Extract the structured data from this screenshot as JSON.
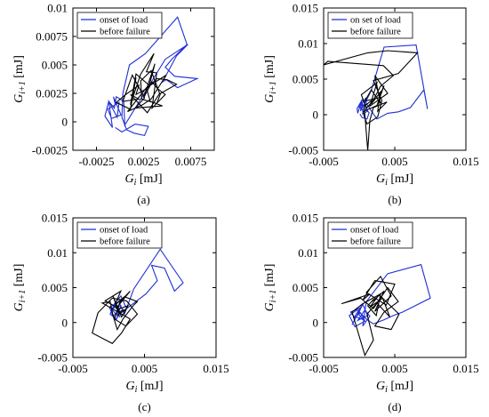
{
  "chart_data": [
    {
      "type": "line",
      "panel_label": "(a)",
      "xlabel": "G_i [mJ]",
      "xlabel_main": "G",
      "xlabel_sub": "i",
      "xlabel_unit": " [mJ]",
      "ylabel": "G_i+1 [mJ]",
      "ylabel_main": "G",
      "ylabel_sub": "i+1",
      "ylabel_unit": " [mJ]",
      "xlim": [
        -0.005,
        0.01
      ],
      "ylim": [
        -0.0025,
        0.01
      ],
      "xticks": [
        -0.0025,
        0.0025,
        0.0075
      ],
      "xtick_labels": [
        "-0.0025",
        "0.0025",
        "0.0075"
      ],
      "yticks": [
        -0.0025,
        0,
        0.0025,
        0.005,
        0.0075,
        0.01
      ],
      "ytick_labels": [
        "-0.0025",
        "0",
        "0.0025",
        "0.005",
        "0.0075",
        "0.01"
      ],
      "legend_position": "top-left",
      "colors": {
        "onset": "#1f2fd6",
        "before": "#000000"
      },
      "series": [
        {
          "name": "onset of load",
          "color": "#1f2fd6",
          "x": [
            -0.0005,
            0.0002,
            0.0016,
            0.003,
            0.0026,
            0.0015,
            0.0007,
            0.0002,
            0.0003,
            0.001,
            0.0027,
            0.0061,
            0.0071,
            0.0055,
            0.0048,
            0.0058,
            0.0082,
            0.0061,
            0.0049,
            0.0045,
            0.006,
            0.0072,
            0.0048,
            0.0005,
            0.0004,
            -0.0004,
            -0.0006,
            -0.0012,
            -0.0008,
            -0.0016,
            -0.0012,
            -0.0003,
            -0.0001,
            -0.0013,
            -0.0009,
            0.0001,
            -0.0007,
            -0.0005
          ],
          "y": [
            -0.0005,
            -0.0009,
            -0.0002,
            -0.0004,
            -0.0012,
            -0.001,
            -0.0007,
            0.0004,
            0.0025,
            0.005,
            0.006,
            0.0092,
            0.0068,
            0.0055,
            0.0048,
            0.004,
            0.0038,
            0.003,
            0.0037,
            0.0035,
            0.0058,
            0.0068,
            0.0055,
            -0.0003,
            0.0018,
            0.0022,
            0.0012,
            0.0018,
            -0.0005,
            0.0005,
            0.0018,
            0.0004,
            0.0017,
            0.0011,
            0.0003,
            0.0006,
            0.0022,
            0.0015
          ]
        },
        {
          "name": "before failure",
          "color": "#000000",
          "x": [
            0.0011,
            0.0017,
            0.0031,
            0.0037,
            0.0025,
            0.0034,
            0.004,
            0.0048,
            0.0034,
            0.0039,
            0.0028,
            0.0036,
            0.0022,
            0.0013,
            0.0017,
            0.0011,
            -0.0004,
            0.0006,
            0.002,
            0.0017,
            0.0028,
            0.0039,
            0.005,
            0.006,
            0.0043,
            0.0039,
            0.0023,
            0.0022,
            0.0033,
            0.0042,
            0.0029,
            0.0011,
            0.002,
            0.0003,
            0.0013,
            0.0026,
            0.0016,
            0.0045,
            0.0032,
            0.0028,
            0.0049,
            0.0033,
            0.0024,
            0.0008,
            0.0028
          ],
          "y": [
            0.0015,
            0.0042,
            0.0032,
            0.0051,
            0.0021,
            0.0035,
            0.0029,
            0.0024,
            0.0012,
            0.0043,
            0.0044,
            0.006,
            0.0042,
            0.002,
            0.0039,
            0.0011,
            0.0017,
            0.0024,
            0.0032,
            0.0024,
            0.0029,
            0.0038,
            0.0037,
            0.0033,
            0.0025,
            0.0016,
            0.002,
            0.0036,
            0.0045,
            0.0025,
            0.0008,
            0.0024,
            0.002,
            0.0018,
            0.0041,
            0.0021,
            0.0012,
            0.0014,
            0.0018,
            0.003,
            0.0041,
            0.002,
            0.0015,
            0.0009,
            0.003
          ]
        }
      ]
    },
    {
      "type": "line",
      "panel_label": "(b)",
      "xlabel": "G_i [mJ]",
      "xlabel_main": "G",
      "xlabel_sub": "i",
      "xlabel_unit": " [mJ]",
      "ylabel": "G_i+1 [mJ]",
      "ylabel_main": "G",
      "ylabel_sub": "i+1",
      "ylabel_unit": " [mJ]",
      "xlim": [
        -0.005,
        0.015
      ],
      "ylim": [
        -0.005,
        0.015
      ],
      "xticks": [
        -0.005,
        0.005,
        0.015
      ],
      "xtick_labels": [
        "-0.005",
        "0.005",
        "0.015"
      ],
      "yticks": [
        -0.005,
        0,
        0.005,
        0.01,
        0.015
      ],
      "ytick_labels": [
        "-0.005",
        "0",
        "0.005",
        "0.01",
        "0.015"
      ],
      "legend_position": "top-left",
      "colors": {
        "onset": "#1f2fd6",
        "before": "#000000"
      },
      "series": [
        {
          "name": "on set of load",
          "color": "#1f2fd6",
          "x": [
            0.0001,
            0.0004,
            0.0011,
            0.0014,
            0.0008,
            0.0005,
            0.0002,
            0.0003,
            0.0006,
            0.0017,
            0.0035,
            0.008,
            0.0096,
            0.0091,
            0.0072,
            0.0055,
            0.004,
            0.0025,
            0.002,
            0.001,
            0.0009,
            0.0001,
            -0.0002,
            -0.0003,
            0.0003,
            0.0006,
            -0.0001,
            0.0004,
            0.0009,
            0.0012,
            0.0004
          ],
          "y": [
            0.0001,
            -0.0004,
            -0.0006,
            0.0003,
            0.0008,
            0.0014,
            0.0005,
            0.0019,
            0.0012,
            0.0034,
            0.0095,
            0.0098,
            0.0008,
            0.0035,
            0.001,
            0.0004,
            0.0002,
            -0.0006,
            0.0001,
            0.0016,
            0.0023,
            0.0012,
            0.0002,
            0.0009,
            0.0017,
            0.0005,
            0.0012,
            0.0021,
            0.0014,
            0.0005,
            0.0001
          ]
        },
        {
          "name": "before failure",
          "color": "#000000",
          "x": [
            0.002,
            0.001,
            0.0003,
            0.0025,
            0.0015,
            0.004,
            0.0022,
            0.003,
            0.0017,
            0.0008,
            0.0028,
            0.0035,
            0.0025,
            0.0005,
            0.0011,
            0.0026,
            0.0032,
            0.002,
            0.0055,
            0.0082,
            0.004,
            0.0012,
            -0.005,
            -0.0044,
            0.0034,
            0.0048,
            0.003,
            0.0017,
            0.003,
            0.0026,
            0.0039,
            0.002,
            0.0015,
            0.0012,
            0.0007,
            0.0019
          ],
          "y": [
            0.002,
            0.0009,
            0.0028,
            0.0045,
            0.0012,
            0.003,
            0.0055,
            0.0016,
            0.0035,
            0.0019,
            0.0024,
            0.0041,
            0.0013,
            0.0004,
            -0.0013,
            -0.0003,
            0.002,
            0.0048,
            0.0058,
            0.0087,
            0.009,
            0.0087,
            0.007,
            0.0075,
            0.0069,
            0.0055,
            0.004,
            0.0015,
            0.0032,
            0.0005,
            0.0018,
            0.001,
            -0.0008,
            -0.005,
            0.0012,
            0.0021
          ]
        }
      ]
    },
    {
      "type": "line",
      "panel_label": "(c)",
      "xlabel": "G_i [mJ]",
      "xlabel_main": "G",
      "xlabel_sub": "i",
      "xlabel_unit": " [mJ]",
      "ylabel": "G_i+1 [mJ]",
      "ylabel_main": "G",
      "ylabel_sub": "i+1",
      "ylabel_unit": " [mJ]",
      "xlim": [
        -0.005,
        0.015
      ],
      "ylim": [
        -0.005,
        0.015
      ],
      "xticks": [
        -0.005,
        0.005,
        0.015
      ],
      "xtick_labels": [
        "-0.005",
        "0.005",
        "0.015"
      ],
      "yticks": [
        -0.005,
        0,
        0.005,
        0.01,
        0.015
      ],
      "ytick_labels": [
        "-0.005",
        "0",
        "0.005",
        "0.01",
        "0.015"
      ],
      "legend_position": "top-left",
      "colors": {
        "onset": "#1f2fd6",
        "before": "#000000"
      },
      "series": [
        {
          "name": "onset of load",
          "color": "#1f2fd6",
          "x": [
            0.0012,
            0.0006,
            0.0001,
            0.0008,
            0.0015,
            0.002,
            0.001,
            0.0003,
            0.0014,
            0.0022,
            0.0035,
            0.0072,
            0.0104,
            0.0092,
            0.0078,
            0.006,
            0.0068,
            0.0052,
            0.0038,
            0.0025,
            0.0017,
            0.0008,
            0.0002,
            0.0011,
            0.0017,
            0.0004,
            0.0009,
            0.0016,
            0.0011
          ],
          "y": [
            0.0015,
            0.0009,
            0.0022,
            0.0026,
            0.0012,
            0.002,
            0.0004,
            0.0017,
            0.003,
            0.0012,
            0.0048,
            0.0105,
            0.0057,
            0.0045,
            0.0078,
            0.0082,
            0.006,
            0.0041,
            0.003,
            0.002,
            0.0038,
            0.0027,
            0.0012,
            0.0005,
            0.0024,
            0.002,
            0.0013,
            0.0008,
            0.0015
          ]
        },
        {
          "name": "before failure",
          "color": "#000000",
          "x": [
            0.001,
            0.003,
            0.0016,
            0.0008,
            0.0024,
            0.004,
            0.0025,
            0.0005,
            -0.0015,
            -0.0023,
            0.0005,
            0.0018,
            0.003,
            0.0008,
            -0.0009,
            0.0002,
            0.0006,
            0.0012,
            0.002,
            0.0035,
            0.004,
            0.0022,
            0.0009,
            0.0017,
            -0.0005,
            0.0015,
            0.0027,
            0.0018,
            0.0006,
            0.0014,
            0.0024,
            0.0012
          ],
          "y": [
            0.002,
            0.0045,
            0.003,
            0.0005,
            -0.0005,
            0.0012,
            0.0031,
            0.0035,
            0.0014,
            -0.0015,
            -0.003,
            -0.0015,
            0.0005,
            0.0018,
            0.0028,
            0.003,
            0.001,
            -0.001,
            0.0005,
            0.0025,
            0.003,
            0.0037,
            0.0026,
            0.0045,
            0.0031,
            0.002,
            0.0024,
            0.0008,
            0.0038,
            0.0015,
            0.0019,
            0.001
          ]
        }
      ]
    },
    {
      "type": "line",
      "panel_label": "(d)",
      "xlabel": "G_i [mJ]",
      "xlabel_main": "G",
      "xlabel_sub": "i",
      "xlabel_unit": " [mJ]",
      "ylabel": "G_i+1 [mJ]",
      "ylabel_main": "G",
      "ylabel_sub": "i+1",
      "ylabel_unit": " [mJ]",
      "xlim": [
        -0.005,
        0.015
      ],
      "ylim": [
        -0.005,
        0.015
      ],
      "xticks": [
        -0.005,
        0.005,
        0.015
      ],
      "xtick_labels": [
        "-0.005",
        "0.005",
        "0.015"
      ],
      "yticks": [
        -0.005,
        0,
        0.005,
        0.01,
        0.015
      ],
      "ytick_labels": [
        "-0.005",
        "0",
        "0.005",
        "0.01",
        "0.015"
      ],
      "legend_position": "top-left",
      "colors": {
        "onset": "#1f2fd6",
        "before": "#000000"
      },
      "series": [
        {
          "name": "onset of load",
          "color": "#1f2fd6",
          "x": [
            -0.0005,
            -0.0012,
            0.0003,
            -0.001,
            0.0005,
            0.0012,
            -0.0002,
            0.0008,
            0.0015,
            0.0005,
            0.001,
            0.004,
            0.0087,
            0.01,
            0.0061,
            0.0048,
            0.0035,
            0.002,
            0.001,
            -0.0003,
            -0.0014,
            -0.0006,
            0.0008,
            0.0002,
            -0.0008,
            0.0004,
            -0.0001,
            0.0006,
            -0.0004
          ],
          "y": [
            0.0005,
            0.0015,
            0.0022,
            -0.0003,
            0.0026,
            0.001,
            0.0003,
            0.0018,
            0.0009,
            -0.0005,
            0.003,
            0.007,
            0.0083,
            0.0035,
            0.0015,
            0.001,
            0.0004,
            -0.0002,
            0.0005,
            0.0018,
            0.001,
            -0.0006,
            0.0002,
            0.0014,
            0.0006,
            0.0025,
            0.0012,
            0.0004,
            0.0008
          ]
        },
        {
          "name": "before failure",
          "color": "#000000",
          "x": [
            0.0018,
            0.0035,
            0.0022,
            0.0045,
            0.003,
            0.001,
            0.0038,
            0.005,
            0.0022,
            0.0005,
            0.0015,
            -0.0025,
            0.0002,
            0.002,
            0.004,
            0.0055,
            0.0035,
            0.0022,
            0.0045,
            0.0056,
            0.0028,
            0.0015,
            0.0033,
            0.0043,
            0.0025,
            0.0011,
            0.002,
            0.0008,
            -0.001,
            0.0005,
            0.003,
            0.0024,
            0.0012,
            0.0021
          ],
          "y": [
            0.003,
            0.0045,
            0.0016,
            0.0038,
            0.0066,
            0.0043,
            0.0025,
            0.0055,
            0.006,
            0.0032,
            0.0041,
            0.0027,
            0.0035,
            0.002,
            0.005,
            0.003,
            0.0015,
            -0.0005,
            -0.001,
            0.0012,
            0.004,
            0.0022,
            0.0035,
            0.0008,
            0.0028,
            0.0012,
            -0.0025,
            -0.0047,
            0.0015,
            0.0027,
            0.0041,
            0.001,
            0.0024,
            0.0034
          ]
        }
      ]
    }
  ]
}
